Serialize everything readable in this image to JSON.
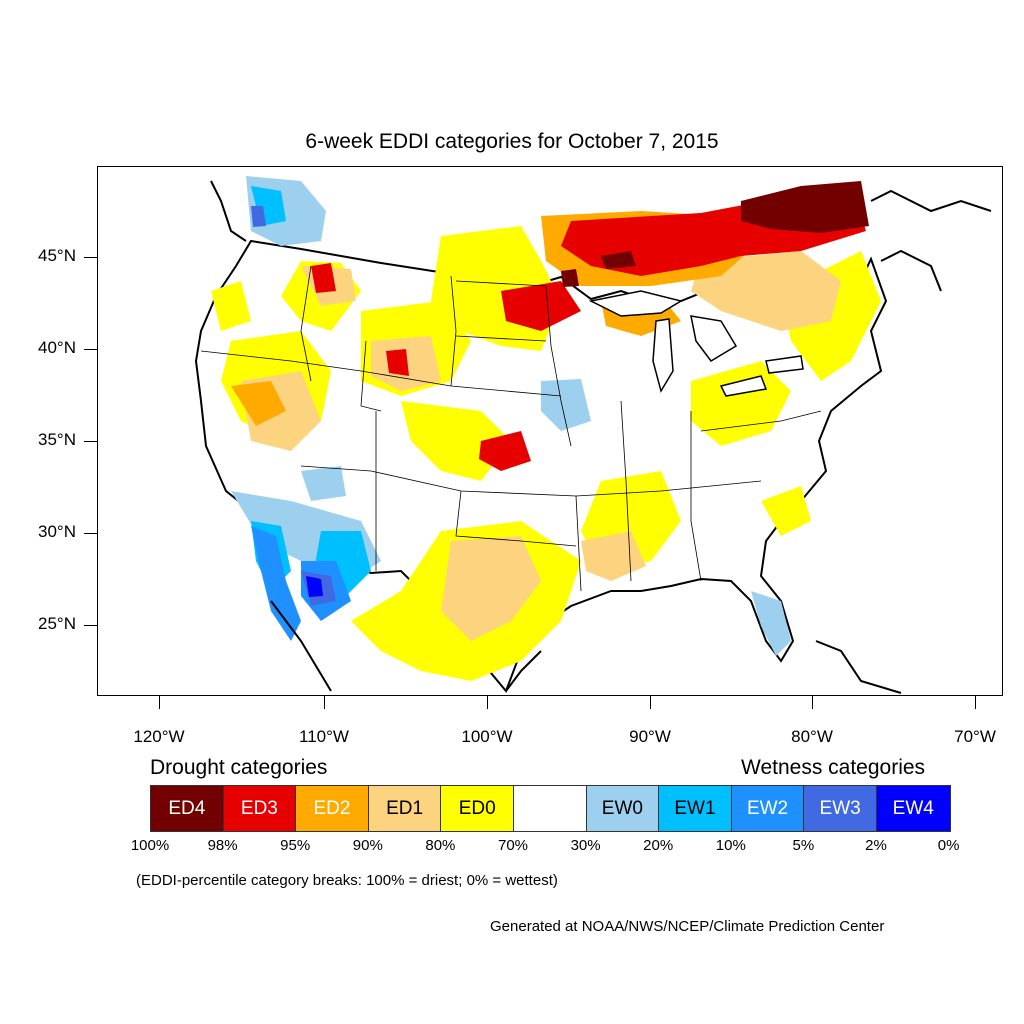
{
  "title": "6-week EDDI categories for October 7, 2015",
  "lat_labels": [
    "45°N",
    "40°N",
    "35°N",
    "30°N",
    "25°N"
  ],
  "lon_labels": [
    "120°W",
    "110°W",
    "100°W",
    "90°W",
    "80°W",
    "70°W"
  ],
  "legend": {
    "drought_heading": "Drought categories",
    "wetness_heading": "Wetness categories",
    "categories": [
      {
        "label": "ED4",
        "color": "#730000",
        "text_color": "#ffffff"
      },
      {
        "label": "ED3",
        "color": "#e60000",
        "text_color": "#ffffff"
      },
      {
        "label": "ED2",
        "color": "#ffaa00",
        "text_color": "#ffffff"
      },
      {
        "label": "ED1",
        "color": "#fcd37f",
        "text_color": "#000000"
      },
      {
        "label": "ED0",
        "color": "#ffff00",
        "text_color": "#000000"
      },
      {
        "label": "",
        "color": "#ffffff",
        "text_color": "#000000"
      },
      {
        "label": "EW0",
        "color": "#9dd0ef",
        "text_color": "#000000"
      },
      {
        "label": "EW1",
        "color": "#00bfff",
        "text_color": "#000000"
      },
      {
        "label": "EW2",
        "color": "#1e90ff",
        "text_color": "#ffffff"
      },
      {
        "label": "EW3",
        "color": "#4169e1",
        "text_color": "#ffffff"
      },
      {
        "label": "EW4",
        "color": "#0000ff",
        "text_color": "#ffffff"
      }
    ],
    "breaks": [
      "100%",
      "98%",
      "95%",
      "90%",
      "80%",
      "70%",
      "30%",
      "20%",
      "10%",
      "5%",
      "2%",
      "0%"
    ]
  },
  "note": "(EDDI-percentile category breaks: 100% = driest; 0% = wettest)",
  "credit": "Generated at NOAA/NWS/NCEP/Climate Prediction Center"
}
